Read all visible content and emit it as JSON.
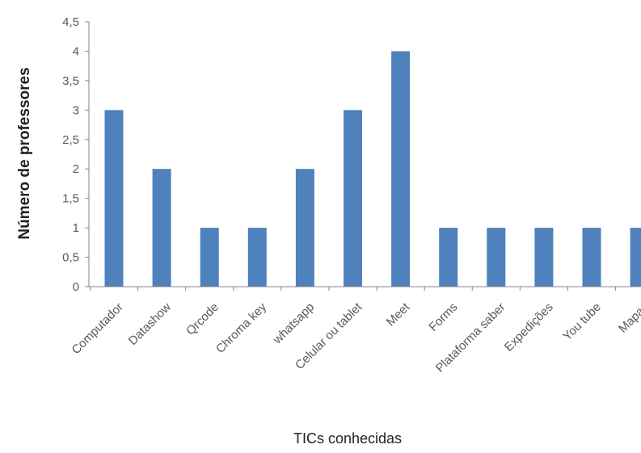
{
  "chart_data": {
    "type": "bar",
    "title": "",
    "xlabel": "TICs conhecidas",
    "ylabel": "Número de professores",
    "categories": [
      "Computador",
      "Datashow",
      "Qrcode",
      "Chroma key",
      "whatsapp",
      "Celular ou tablet",
      "Meet",
      "Forms",
      "Plataforma saber",
      "Expedições",
      "You tube",
      "Mapas"
    ],
    "values": [
      3,
      2,
      1,
      1,
      2,
      3,
      4,
      1,
      1,
      1,
      1,
      1
    ],
    "ylim": [
      0,
      4.5
    ],
    "yticks": [
      "0",
      "0,5",
      "1",
      "1,5",
      "2",
      "2,5",
      "3",
      "3,5",
      "4",
      "4,5"
    ],
    "grid": false,
    "legend": "none",
    "bar_color": "#4f81bd",
    "axis_color": "#868686"
  }
}
